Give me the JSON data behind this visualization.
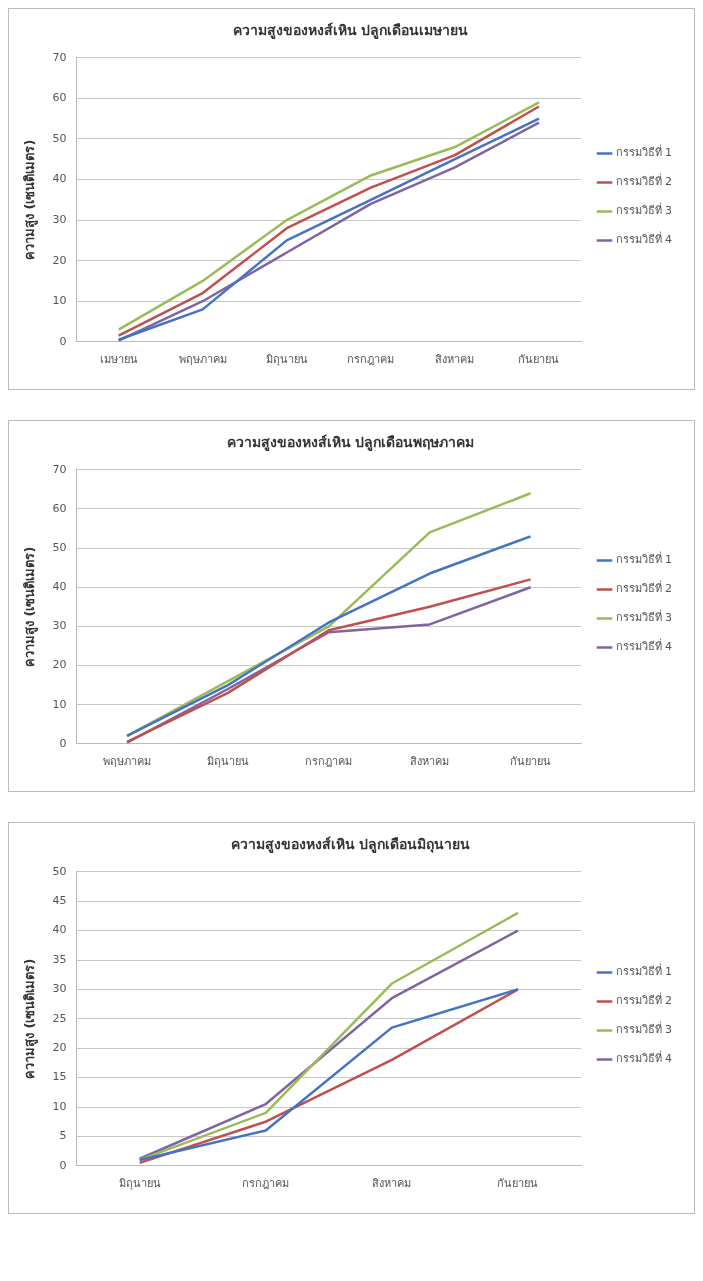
{
  "chart_data": [
    {
      "type": "line",
      "title": "ความสูงของหงส์เหิน ปลูกเดือนเมษายน",
      "ylabel": "ความสูง (เซนติเมตร)",
      "categories": [
        "เมษายน",
        "พฤษภาคม",
        "มิถุนายน",
        "กรกฎาคม",
        "สิงหาคม",
        "กันยายน"
      ],
      "ylim": [
        0,
        70
      ],
      "yticks": [
        0,
        10,
        20,
        30,
        40,
        50,
        60,
        70
      ],
      "grid": "y",
      "legend": "right",
      "marker": "none",
      "line_style": "solid",
      "series": [
        {
          "name": "กรรมวิธีที่ 1",
          "color": "#4472c4",
          "values": [
            0.5,
            8,
            25,
            35,
            45,
            55
          ]
        },
        {
          "name": "กรรมวิธีที่ 2",
          "color": "#c0504d",
          "values": [
            1.5,
            12,
            28,
            38,
            46,
            58
          ]
        },
        {
          "name": "กรรมวิธีที่ 3",
          "color": "#9bbb59",
          "values": [
            3,
            15,
            30,
            41,
            48,
            59
          ]
        },
        {
          "name": "กรรมวิธีที่ 4",
          "color": "#8064a2",
          "values": [
            0.3,
            10,
            22,
            34,
            43,
            54
          ]
        }
      ]
    },
    {
      "type": "line",
      "title": "ความสูงของหงส์เหิน ปลูกเดือนพฤษภาคม",
      "ylabel": "ความสูง (เซนติเมตร)",
      "categories": [
        "พฤษภาคม",
        "มิถุนายน",
        "กรกฎาคม",
        "สิงหาคม",
        "กันยายน"
      ],
      "ylim": [
        0,
        70
      ],
      "yticks": [
        0,
        10,
        20,
        30,
        40,
        50,
        60,
        70
      ],
      "grid": "y",
      "legend": "right",
      "marker": "none",
      "line_style": "solid",
      "series": [
        {
          "name": "กรรมวิธีที่ 1",
          "color": "#4472c4",
          "values": [
            2,
            15,
            31,
            43.5,
            53
          ]
        },
        {
          "name": "กรรมวิธีที่ 2",
          "color": "#c0504d",
          "values": [
            0.5,
            13,
            29,
            35,
            42
          ]
        },
        {
          "name": "กรรมวิธีที่ 3",
          "color": "#9bbb59",
          "values": [
            2,
            16,
            30,
            54,
            64
          ]
        },
        {
          "name": "กรรมวิธีที่ 4",
          "color": "#8064a2",
          "values": [
            0.3,
            14,
            28.5,
            30.5,
            40
          ]
        }
      ]
    },
    {
      "type": "line",
      "title": "ความสูงของหงส์เหิน ปลูกเดือนมิถุนายน",
      "ylabel": "ความสูง (เซนติเมตร)",
      "categories": [
        "มิถุนายน",
        "กรกฎาคม",
        "สิงหาคม",
        "กันยายน"
      ],
      "ylim": [
        0,
        50
      ],
      "yticks": [
        0,
        5,
        10,
        15,
        20,
        25,
        30,
        35,
        40,
        45,
        50
      ],
      "grid": "y",
      "legend": "right",
      "marker": "none",
      "line_style": "solid",
      "series": [
        {
          "name": "กรรมวิธีที่ 1",
          "color": "#4472c4",
          "values": [
            1,
            6,
            23.5,
            30
          ]
        },
        {
          "name": "กรรมวิธีที่ 2",
          "color": "#c0504d",
          "values": [
            0.5,
            7.5,
            18,
            30
          ]
        },
        {
          "name": "กรรมวิธีที่ 3",
          "color": "#9bbb59",
          "values": [
            1,
            9,
            31,
            43
          ]
        },
        {
          "name": "กรรมวิธีที่ 4",
          "color": "#8064a2",
          "values": [
            1.2,
            10.5,
            28.5,
            40
          ]
        }
      ]
    }
  ]
}
